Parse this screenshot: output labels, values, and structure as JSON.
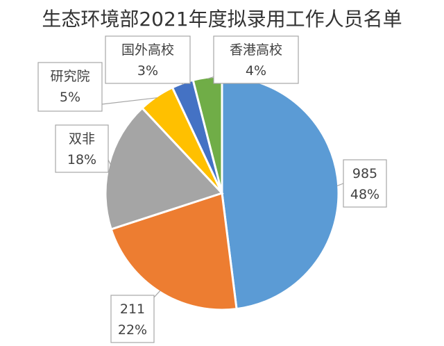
{
  "chart_data": {
    "type": "pie",
    "title": "生态环境部2021年度拟录用工作人员名单",
    "slices": [
      {
        "label": "985",
        "value": 48,
        "value_label": "48%",
        "color": "#5B9BD5"
      },
      {
        "label": "211",
        "value": 22,
        "value_label": "22%",
        "color": "#ED7D31"
      },
      {
        "label": "双非",
        "value": 18,
        "value_label": "18%",
        "color": "#A5A5A5"
      },
      {
        "label": "研究院",
        "value": 5,
        "value_label": "5%",
        "color": "#FFC000"
      },
      {
        "label": "国外高校",
        "value": 3,
        "value_label": "3%",
        "color": "#4472C4"
      },
      {
        "label": "香港高校",
        "value": 4,
        "value_label": "4%",
        "color": "#70AD47"
      }
    ]
  }
}
